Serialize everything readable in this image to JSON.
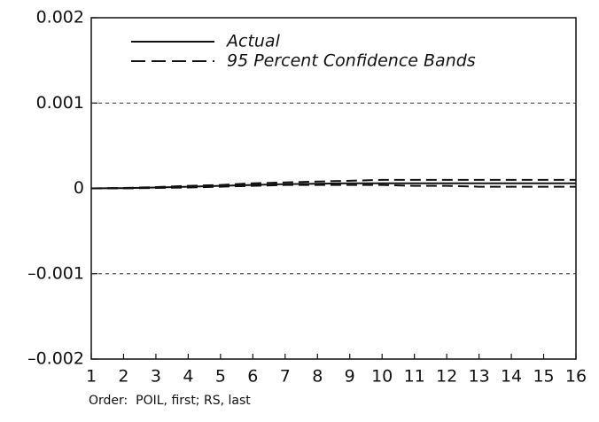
{
  "chart_data": {
    "type": "line",
    "x": [
      1,
      2,
      3,
      4,
      5,
      6,
      7,
      8,
      9,
      10,
      11,
      12,
      13,
      14,
      15,
      16
    ],
    "xlim": [
      1,
      16
    ],
    "xticks": [
      1,
      2,
      3,
      4,
      5,
      6,
      7,
      8,
      9,
      10,
      11,
      12,
      13,
      14,
      15,
      16
    ],
    "ylim": [
      -0.002,
      0.002
    ],
    "yticks": [
      {
        "value": -0.002,
        "label": "–0.002"
      },
      {
        "value": -0.001,
        "label": "–0.001"
      },
      0,
      0.001,
      0.002
    ],
    "grid": true,
    "legend": "upper left",
    "series": [
      {
        "name": "Actual",
        "style": "solid",
        "color": "#111111",
        "values": [
          0,
          3e-06,
          1e-05,
          2e-05,
          3e-05,
          4e-05,
          5e-05,
          5.5e-05,
          6e-05,
          6e-05,
          6e-05,
          6e-05,
          6e-05,
          6e-05,
          6e-05,
          6e-05
        ]
      },
      {
        "name": "95 Percent Confidence Bands",
        "style": "dashed",
        "color": "#111111",
        "values": [
          0,
          5e-06,
          1.5e-05,
          3e-05,
          4e-05,
          6e-05,
          7e-05,
          8e-05,
          9e-05,
          0.0001,
          0.0001,
          0.0001,
          0.0001,
          0.0001,
          0.0001,
          0.0001
        ]
      },
      {
        "style": "dashed",
        "color": "#111111",
        "values": [
          0,
          0,
          5e-06,
          1e-05,
          2e-05,
          3e-05,
          4e-05,
          4e-05,
          4e-05,
          4e-05,
          3e-05,
          3e-05,
          2e-05,
          2e-05,
          2e-05,
          2e-05
        ]
      }
    ],
    "note": "Order:  POIL, first; RS, last"
  }
}
